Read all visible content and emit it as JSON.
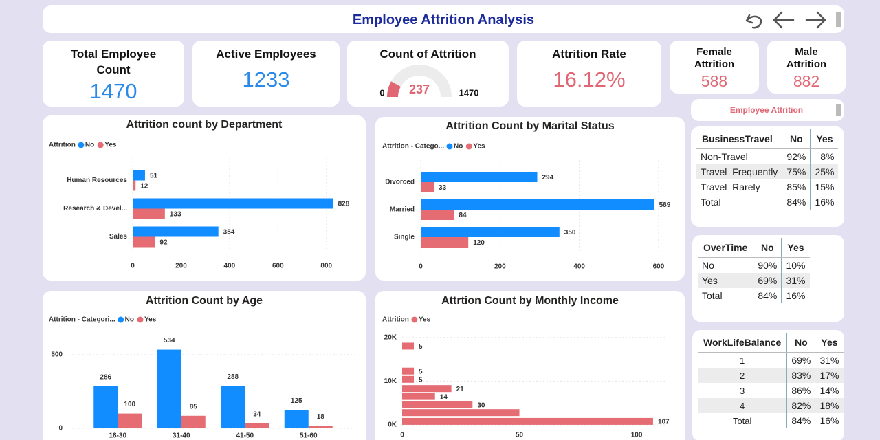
{
  "header": {
    "title": "Employee Attrition Analysis"
  },
  "cards": [
    {
      "title": "Total Employee Count",
      "value": 1470,
      "color": "#2b8ae8"
    },
    {
      "title": "Active Employees",
      "value": 1233,
      "color": "#2b8ae8"
    },
    {
      "title": "Count of Attrition",
      "value": 237,
      "min": 0,
      "max": 1470,
      "color": "#e06673"
    },
    {
      "title": "Attrition Rate",
      "value": "16.12%",
      "color": "#e06673"
    },
    {
      "title": "Female Attrition",
      "value": 588,
      "color": "#e06673"
    },
    {
      "title": "Male Attrition",
      "value": 882,
      "color": "#e06673"
    }
  ],
  "chart_data": [
    {
      "type": "bar",
      "orientation": "horizontal",
      "title": "Attrition count by Department",
      "legend_title": "Attrition",
      "categories": [
        "Human Resources",
        "Research & Devel...",
        "Sales"
      ],
      "series": [
        {
          "name": "No",
          "color": "#118DFF",
          "values": [
            51,
            828,
            354
          ]
        },
        {
          "name": "Yes",
          "color": "#E66C74",
          "values": [
            12,
            133,
            92
          ]
        }
      ],
      "xlim": [
        0,
        900
      ],
      "xticks": [
        0,
        200,
        400,
        600,
        800
      ],
      "grid": true
    },
    {
      "type": "bar",
      "orientation": "horizontal",
      "title": "Attrition Count by Marital Status",
      "legend_title": "Attrition - Catego...",
      "categories": [
        "Divorced",
        "Married",
        "Single"
      ],
      "series": [
        {
          "name": "No",
          "color": "#118DFF",
          "values": [
            294,
            589,
            350
          ]
        },
        {
          "name": "Yes",
          "color": "#E66C74",
          "values": [
            33,
            84,
            120
          ]
        }
      ],
      "xlim": [
        0,
        640
      ],
      "xticks": [
        0,
        200,
        400,
        600
      ],
      "grid": true
    },
    {
      "type": "bar",
      "orientation": "vertical",
      "title": "Attrition Count by Age",
      "legend_title": "Attrition - Categori...",
      "categories": [
        "18-30",
        "31-40",
        "41-50",
        "51-60"
      ],
      "series": [
        {
          "name": "No",
          "color": "#118DFF",
          "values": [
            286,
            534,
            288,
            125
          ]
        },
        {
          "name": "Yes",
          "color": "#E66C74",
          "values": [
            100,
            85,
            34,
            18
          ]
        }
      ],
      "ylim": [
        0,
        560
      ],
      "yticks": [
        0,
        500
      ],
      "grid": true
    },
    {
      "type": "bar",
      "orientation": "horizontal",
      "title": "Attrtion Count by Monthly Income",
      "legend_title": "Attrition",
      "y": [
        18000,
        12300,
        10400,
        8300,
        6500,
        4600,
        2800,
        800
      ],
      "series": [
        {
          "name": "Yes",
          "color": "#E66C74",
          "values": [
            5,
            5,
            5,
            21,
            14,
            30,
            50,
            107
          ],
          "value_labels": [
            "5",
            "5",
            "5",
            "21",
            "14",
            "30",
            null,
            "107"
          ]
        }
      ],
      "xlim": [
        0,
        112
      ],
      "xticks": [
        0,
        50,
        100
      ],
      "ylim": [
        0,
        22000
      ],
      "yticks": [
        {
          "value": 0,
          "label": "0K"
        },
        {
          "value": 10000,
          "label": "10K"
        },
        {
          "value": 20000,
          "label": "20K"
        }
      ],
      "grid": true
    }
  ],
  "slicer": {
    "title": "Employee Attrition"
  },
  "tables": [
    {
      "columns": [
        "BusinessTravel",
        "No",
        "Yes"
      ],
      "rows": [
        [
          "Non-Travel",
          "92%",
          "8%"
        ],
        [
          "Travel_Frequently",
          "75%",
          "25%"
        ],
        [
          "Travel_Rarely",
          "85%",
          "15%"
        ],
        [
          "Total",
          "84%",
          "16%"
        ]
      ]
    },
    {
      "columns": [
        "OverTime",
        "No",
        "Yes"
      ],
      "rows": [
        [
          "No",
          "90%",
          "10%"
        ],
        [
          "Yes",
          "69%",
          "31%"
        ],
        [
          "Total",
          "84%",
          "16%"
        ]
      ]
    },
    {
      "columns": [
        "WorkLifeBalance",
        "No",
        "Yes"
      ],
      "rows": [
        [
          "1",
          "69%",
          "31%"
        ],
        [
          "2",
          "83%",
          "17%"
        ],
        [
          "3",
          "86%",
          "14%"
        ],
        [
          "4",
          "82%",
          "18%"
        ],
        [
          "Total",
          "84%",
          "16%"
        ]
      ]
    }
  ]
}
